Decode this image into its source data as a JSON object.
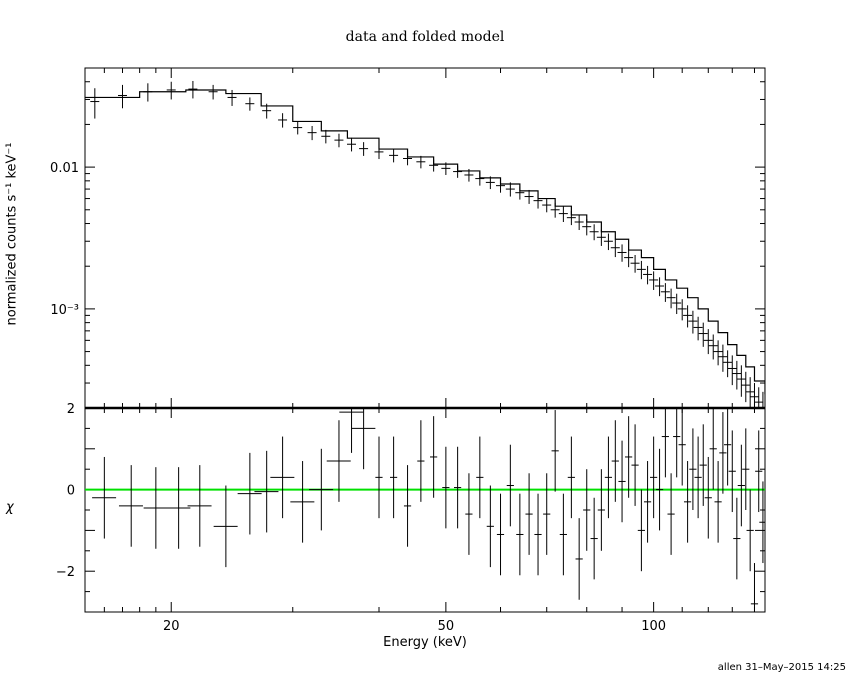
{
  "chart_data": [
    {
      "type": "line",
      "panel": "top",
      "title": "data and folded model",
      "ylabel": "normalized counts s⁻¹ keV⁻¹",
      "yscale": "log",
      "xscale": "log",
      "xlim": [
        15,
        145
      ],
      "ylim": [
        0.0002,
        0.05
      ],
      "yticks": [
        "0.01",
        "10⁻³"
      ],
      "data": {
        "x": [
          15.5,
          17,
          18.5,
          20,
          21.5,
          23,
          24.5,
          26,
          27.5,
          29,
          30.5,
          32,
          33.5,
          35,
          36.5,
          38,
          40,
          42,
          44,
          46,
          48,
          50,
          52,
          54,
          56,
          58,
          60,
          62,
          64,
          66,
          68,
          70,
          72,
          74,
          76,
          78,
          80,
          82,
          84,
          86,
          88,
          90,
          92,
          94,
          96,
          98,
          100,
          102,
          104,
          106,
          108,
          110,
          112,
          114,
          116,
          118,
          120,
          122,
          124,
          126,
          128,
          130,
          132,
          134,
          136,
          138,
          140,
          142,
          144
        ],
        "y": [
          0.029,
          0.032,
          0.034,
          0.035,
          0.0355,
          0.034,
          0.031,
          0.028,
          0.025,
          0.0215,
          0.019,
          0.0175,
          0.0165,
          0.0155,
          0.0145,
          0.0135,
          0.0128,
          0.0121,
          0.0115,
          0.0109,
          0.0103,
          0.0098,
          0.0093,
          0.0088,
          0.0083,
          0.0078,
          0.0074,
          0.007,
          0.0066,
          0.0062,
          0.0058,
          0.0054,
          0.005,
          0.0047,
          0.0044,
          0.0041,
          0.0038,
          0.0035,
          0.0032,
          0.003,
          0.0027,
          0.0025,
          0.0023,
          0.0021,
          0.0019,
          0.00175,
          0.0016,
          0.00145,
          0.00132,
          0.0012,
          0.0011,
          0.001,
          0.0009,
          0.00082,
          0.00074,
          0.00067,
          0.0006,
          0.00055,
          0.0005,
          0.00046,
          0.00042,
          0.00038,
          0.00035,
          0.00032,
          0.00029,
          0.00026,
          0.00024,
          0.00022,
          0.0002
        ],
        "yerr": [
          0.007,
          0.006,
          0.005,
          0.005,
          0.005,
          0.004,
          0.004,
          0.003,
          0.003,
          0.0025,
          0.002,
          0.002,
          0.0018,
          0.0017,
          0.0016,
          0.0015,
          0.0014,
          0.0013,
          0.0012,
          0.0011,
          0.001,
          0.001,
          0.0009,
          0.0009,
          0.0009,
          0.0008,
          0.0008,
          0.0008,
          0.0007,
          0.0007,
          0.0007,
          0.0006,
          0.0006,
          0.0006,
          0.0005,
          0.0005,
          0.0005,
          0.00045,
          0.00042,
          0.0004,
          0.00038,
          0.00035,
          0.00033,
          0.0003,
          0.00028,
          0.00026,
          0.00024,
          0.00022,
          0.0002,
          0.00019,
          0.00018,
          0.00017,
          0.00016,
          0.00015,
          0.00014,
          0.00013,
          0.00012,
          0.00011,
          0.0001,
          0.0001,
          9e-05,
          9e-05,
          8e-05,
          8e-05,
          7e-05,
          7e-05,
          6e-05,
          6e-05,
          6e-05
        ]
      },
      "model": {
        "x": [
          15,
          18,
          21,
          24,
          27,
          30,
          33,
          36,
          40,
          44,
          48,
          52,
          56,
          60,
          64,
          68,
          72,
          76,
          80,
          84,
          88,
          92,
          96,
          100,
          104,
          108,
          112,
          116,
          120,
          124,
          128,
          132,
          136,
          140,
          145
        ],
        "y": [
          0.031,
          0.034,
          0.035,
          0.033,
          0.027,
          0.021,
          0.018,
          0.016,
          0.0134,
          0.0118,
          0.0105,
          0.0094,
          0.0084,
          0.0076,
          0.0068,
          0.006,
          0.0053,
          0.0046,
          0.0041,
          0.0035,
          0.0031,
          0.0026,
          0.0023,
          0.0019,
          0.0016,
          0.0014,
          0.0012,
          0.001,
          0.00082,
          0.00068,
          0.00056,
          0.00047,
          0.00039,
          0.00031,
          0.00025
        ]
      }
    },
    {
      "type": "scatter",
      "panel": "bottom",
      "xlabel": "Energy (keV)",
      "ylabel": "χ",
      "xscale": "log",
      "xlim": [
        15,
        145
      ],
      "ylim": [
        -3,
        2
      ],
      "yticks": [
        "2",
        "0",
        "−2"
      ],
      "xticks": [
        "20",
        "50",
        "100"
      ],
      "zero_line_color": "#00e000",
      "data": {
        "x": [
          16,
          17.5,
          19,
          20.5,
          22,
          24,
          26,
          27.5,
          29,
          31,
          33,
          35,
          36.5,
          38,
          40,
          42,
          44,
          46,
          48,
          50,
          52,
          54,
          56,
          58,
          60,
          62,
          64,
          66,
          68,
          70,
          72,
          74,
          76,
          78,
          80,
          82,
          84,
          86,
          88,
          90,
          92,
          94,
          96,
          98,
          100,
          102,
          104,
          106,
          108,
          110,
          112,
          114,
          116,
          118,
          120,
          122,
          124,
          126,
          128,
          130,
          132,
          134,
          136,
          138,
          140,
          142,
          144
        ],
        "y": [
          -0.2,
          -0.4,
          -0.45,
          -0.45,
          -0.4,
          -0.9,
          -0.1,
          -0.05,
          0.3,
          -0.3,
          0,
          0.7,
          1.9,
          1.5,
          0.3,
          0.3,
          -0.4,
          0.7,
          0.8,
          0.05,
          0.05,
          -0.6,
          0.3,
          -0.9,
          -1.1,
          0.1,
          -1.1,
          -0.6,
          -1.1,
          -0.6,
          0.95,
          -1.1,
          0.3,
          -1.7,
          -0.5,
          -1.2,
          -0.5,
          0.3,
          0.7,
          0.2,
          0.8,
          0.6,
          -1,
          -0.3,
          0.3,
          0,
          1.3,
          -0.6,
          1.3,
          1.1,
          -0.3,
          0.5,
          0.3,
          0.6,
          -0.2,
          1,
          -0.3,
          0.9,
          1.1,
          0.45,
          -1.2,
          0.1,
          0.5,
          -1,
          -2.8,
          0.45,
          -0.8
        ],
        "yerr": [
          1,
          1,
          1,
          1,
          1,
          1,
          1,
          1,
          1,
          1,
          1,
          1,
          1,
          1,
          1,
          1,
          1,
          1,
          1,
          1,
          1,
          1,
          1,
          1,
          1,
          1,
          1,
          1,
          1,
          1,
          1,
          1,
          1,
          1,
          1,
          1,
          1,
          1,
          1,
          1,
          1,
          1,
          1,
          1,
          1,
          1,
          1,
          1,
          1,
          1,
          1,
          1,
          1,
          1,
          1,
          1,
          1,
          1,
          1,
          1,
          1,
          1,
          1,
          1,
          1,
          1,
          1
        ]
      }
    }
  ],
  "page": {
    "title": "data and folded model",
    "xlabel": "Energy (keV)",
    "ylabel_top": "normalized counts s⁻¹ keV⁻¹",
    "ylabel_bottom": "χ",
    "footer": "allen 31–May–2015 14:25"
  }
}
